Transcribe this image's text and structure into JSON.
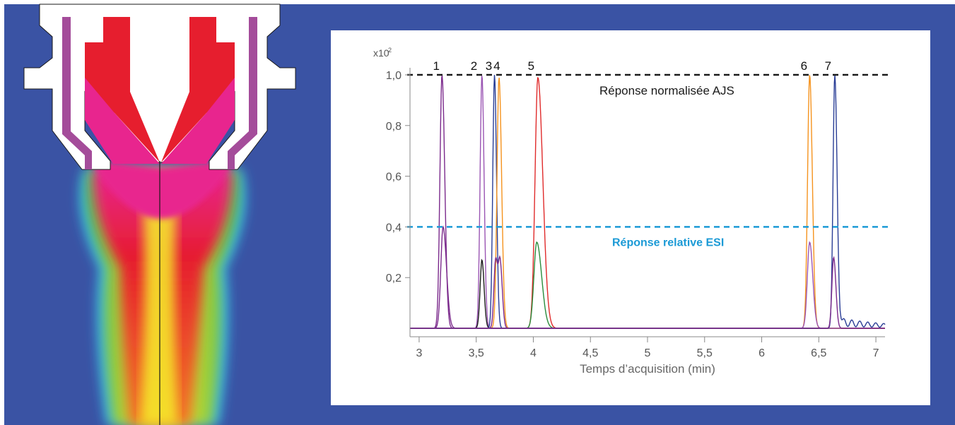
{
  "colors": {
    "background": "#3a53a4",
    "panel": "#ffffff",
    "ajs_line": "#1a1a1a",
    "esi_line": "#1b9ad6",
    "esi_label": "#1b9ad6"
  },
  "illustration": {
    "name": "esi-nozzle-spray-plume",
    "palette": [
      "#e61e2e",
      "#e8258e",
      "#f5ef2c",
      "#57b848",
      "#35b6e6",
      "#a44c9a"
    ]
  },
  "chart_data": {
    "type": "line",
    "title": "",
    "xlabel": "Temps d’acquisition (min)",
    "ylabel": "",
    "y_multiplier_label": "x10",
    "y_multiplier_exp": "2",
    "xlim": [
      2.92,
      7.08
    ],
    "ylim": [
      0,
      1.0
    ],
    "xticks": [
      3,
      3.5,
      4,
      4.5,
      5,
      5.5,
      6,
      6.5,
      7
    ],
    "xtick_labels": [
      "3",
      "3,5",
      "4",
      "4,5",
      "5",
      "5,5",
      "6",
      "6,5",
      "7"
    ],
    "yticks": [
      0.2,
      0.4,
      0.6,
      0.8,
      1.0
    ],
    "ytick_labels": [
      "0,2",
      "0,4",
      "0,6",
      "0,8",
      "1,0"
    ],
    "reference_lines": [
      {
        "y": 1.0,
        "label": "Réponse normalisée AJS",
        "color": "#1a1a1a",
        "style": "dashed"
      },
      {
        "y": 0.4,
        "label": "Réponse relative ESI",
        "color": "#1b9ad6",
        "style": "dashed"
      }
    ],
    "peak_labels": [
      {
        "label": "1",
        "x": 3.2
      },
      {
        "label": "2",
        "x": 3.53
      },
      {
        "label": "3",
        "x": 3.66
      },
      {
        "label": "4",
        "x": 3.73
      },
      {
        "label": "5",
        "x": 4.03
      },
      {
        "label": "6",
        "x": 6.42
      },
      {
        "label": "7",
        "x": 6.63
      }
    ],
    "series": [
      {
        "color": "#7b2a8c",
        "peaks": [
          {
            "x": 3.2,
            "h": 1.0,
            "w": 0.018
          }
        ],
        "tail": 0.06
      },
      {
        "color": "#7b2a8c",
        "peaks": [
          {
            "x": 3.21,
            "h": 0.4,
            "w": 0.02
          }
        ],
        "tail": 0.08
      },
      {
        "color": "#9a55b3",
        "peaks": [
          {
            "x": 3.55,
            "h": 1.0,
            "w": 0.016
          }
        ],
        "tail": 0.03
      },
      {
        "color": "#1a1a1a",
        "peaks": [
          {
            "x": 3.55,
            "h": 0.27,
            "w": 0.016
          }
        ],
        "tail": 0.03
      },
      {
        "color": "#2a3e96",
        "peaks": [
          {
            "x": 3.66,
            "h": 1.0,
            "w": 0.015
          }
        ],
        "tail": 0.03
      },
      {
        "color": "#f5931e",
        "peaks": [
          {
            "x": 3.7,
            "h": 0.99,
            "w": 0.018
          }
        ],
        "tail": 0.04
      },
      {
        "color": "#7b2a8c",
        "peaks": [
          {
            "x": 3.67,
            "h": 0.27,
            "w": 0.015
          },
          {
            "x": 3.71,
            "h": 0.25,
            "w": 0.015
          }
        ],
        "tail": 0.04
      },
      {
        "color": "#e02b2b",
        "peaks": [
          {
            "x": 4.04,
            "h": 0.99,
            "w": 0.025
          }
        ],
        "tail": 0.12
      },
      {
        "color": "#2a8c3c",
        "peaks": [
          {
            "x": 4.03,
            "h": 0.34,
            "w": 0.025
          }
        ],
        "tail": 0.12
      },
      {
        "color": "#f5931e",
        "peaks": [
          {
            "x": 6.42,
            "h": 1.0,
            "w": 0.018
          }
        ],
        "tail": 0.05
      },
      {
        "color": "#9a55b3",
        "peaks": [
          {
            "x": 6.42,
            "h": 0.34,
            "w": 0.02
          }
        ],
        "tail": 0.06
      },
      {
        "color": "#2a3e96",
        "peaks": [
          {
            "x": 6.64,
            "h": 1.0,
            "w": 0.015
          }
        ],
        "tail": 0.06,
        "noise": 0.04
      },
      {
        "color": "#7b2a8c",
        "peaks": [
          {
            "x": 6.63,
            "h": 0.28,
            "w": 0.015
          }
        ],
        "tail": 0.05
      }
    ]
  }
}
